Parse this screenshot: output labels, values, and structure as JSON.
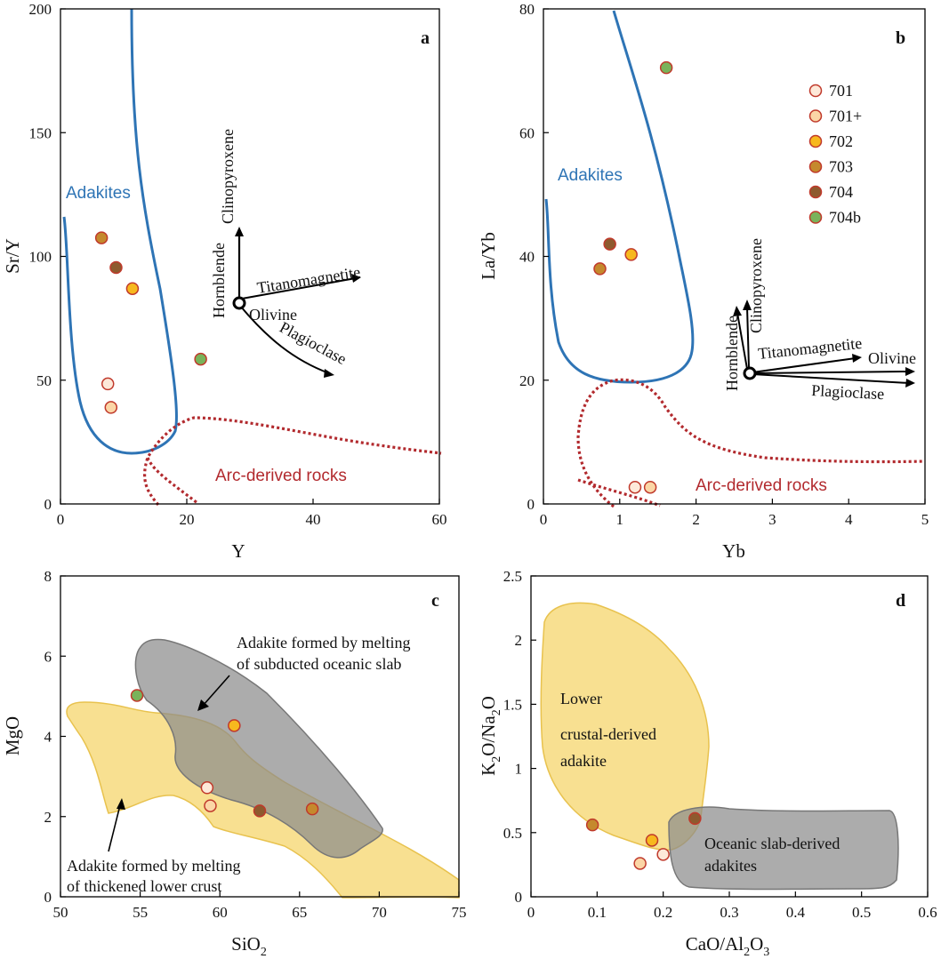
{
  "colors": {
    "701": "#FDE9D9",
    "701+": "#FBD6A6",
    "702": "#F7B81E",
    "703": "#C5892D",
    "704": "#8E5A2E",
    "704b": "#79B35A",
    "marker_edge": "#C0392B",
    "adakite_field": "#2E74B5",
    "arc_field": "#B22A2E",
    "lower_crust_fill": "#F6D56C",
    "slab_fill": "#9A9A9A"
  },
  "legend": [
    "701",
    "701+",
    "702",
    "703",
    "704",
    "704b"
  ],
  "chart_data": [
    {
      "panel": "a",
      "type": "scatter",
      "xlabel": "Y",
      "ylabel": "Sr/Y",
      "xlim": [
        0,
        60
      ],
      "ylim": [
        0,
        200
      ],
      "xticks": [
        "0",
        "20",
        "40",
        "60"
      ],
      "yticks": [
        "0",
        "50",
        "100",
        "150",
        "200"
      ],
      "points": [
        {
          "group": "703",
          "x": 6.5,
          "y": 107.5
        },
        {
          "group": "704",
          "x": 8.8,
          "y": 95.5
        },
        {
          "group": "702",
          "x": 11.4,
          "y": 87
        },
        {
          "group": "704b",
          "x": 22.2,
          "y": 58.5
        },
        {
          "group": "701",
          "x": 7.5,
          "y": 48.5
        },
        {
          "group": "701+",
          "x": 8,
          "y": 39
        }
      ],
      "field_labels": {
        "adakites": "Adakites",
        "arc": "Arc-derived rocks"
      },
      "vectors": [
        "Clinopyroxene",
        "Hornblende",
        "Titanomagnetite",
        "Olivine",
        "Plagioclase"
      ]
    },
    {
      "panel": "b",
      "type": "scatter",
      "xlabel": "Yb",
      "ylabel": "La/Yb",
      "xlim": [
        0,
        5
      ],
      "ylim": [
        0,
        80
      ],
      "xticks": [
        "0",
        "1",
        "2",
        "3",
        "4",
        "5"
      ],
      "yticks": [
        "0",
        "20",
        "40",
        "60",
        "80"
      ],
      "points": [
        {
          "group": "704b",
          "x": 1.61,
          "y": 70.5
        },
        {
          "group": "704",
          "x": 0.87,
          "y": 42
        },
        {
          "group": "702",
          "x": 1.15,
          "y": 40.3
        },
        {
          "group": "703",
          "x": 0.74,
          "y": 38
        },
        {
          "group": "701",
          "x": 1.2,
          "y": 2.7
        },
        {
          "group": "701+",
          "x": 1.4,
          "y": 2.7
        }
      ],
      "field_labels": {
        "adakites": "Adakites",
        "arc": "Arc-derived rocks"
      },
      "vectors": [
        "Clinopyroxene",
        "Hornblende",
        "Titanomagnetite",
        "Olivine",
        "Plagioclase"
      ]
    },
    {
      "panel": "c",
      "type": "scatter",
      "xlabel": "SiO",
      "xlabel_sub": "2",
      "ylabel": "MgO",
      "xlim": [
        50,
        75
      ],
      "ylim": [
        0,
        8
      ],
      "xticks": [
        "50",
        "55",
        "60",
        "65",
        "70",
        "75"
      ],
      "yticks": [
        "0",
        "2",
        "4",
        "6",
        "8"
      ],
      "points": [
        {
          "group": "704b",
          "x": 54.8,
          "y": 5.02
        },
        {
          "group": "702",
          "x": 60.9,
          "y": 4.27
        },
        {
          "group": "701",
          "x": 59.2,
          "y": 2.72
        },
        {
          "group": "701+",
          "x": 59.4,
          "y": 2.27
        },
        {
          "group": "704",
          "x": 62.5,
          "y": 2.14
        },
        {
          "group": "703",
          "x": 65.8,
          "y": 2.19
        }
      ],
      "field_labels": {
        "slab_line1": "Adakite  formed by melting",
        "slab_line2": "of subducted oceanic slab",
        "crust_line1": "Adakite  formed by melting",
        "crust_line2": "of thickened lower crust"
      }
    },
    {
      "panel": "d",
      "type": "scatter",
      "xlabel": "CaO/Al",
      "xlabel_sub1": "2",
      "xlabel_tail": "O",
      "xlabel_sub2": "3",
      "ylabel": "K",
      "ylabel_sub1": "2",
      "ylabel_mid": "O/Na",
      "ylabel_sub2": "2",
      "ylabel_tail": "O",
      "xlim": [
        0,
        0.6
      ],
      "ylim": [
        0,
        2.5
      ],
      "xticks": [
        "0",
        "0.1",
        "0.2",
        "0.3",
        "0.4",
        "0.5",
        "0.6"
      ],
      "yticks": [
        "0",
        "0.5",
        "1",
        "1.5",
        "2",
        "2.5"
      ],
      "points": [
        {
          "group": "703",
          "x": 0.093,
          "y": 0.56
        },
        {
          "group": "702",
          "x": 0.183,
          "y": 0.44
        },
        {
          "group": "704",
          "x": 0.248,
          "y": 0.61
        },
        {
          "group": "701+",
          "x": 0.165,
          "y": 0.26
        },
        {
          "group": "701",
          "x": 0.2,
          "y": 0.33
        }
      ],
      "field_labels": {
        "lower_line1": "Lower",
        "lower_line2": "crustal-derived",
        "lower_line3": "adakite",
        "slab_line1": "Oceanic slab-derived",
        "slab_line2": "adakites"
      }
    }
  ]
}
